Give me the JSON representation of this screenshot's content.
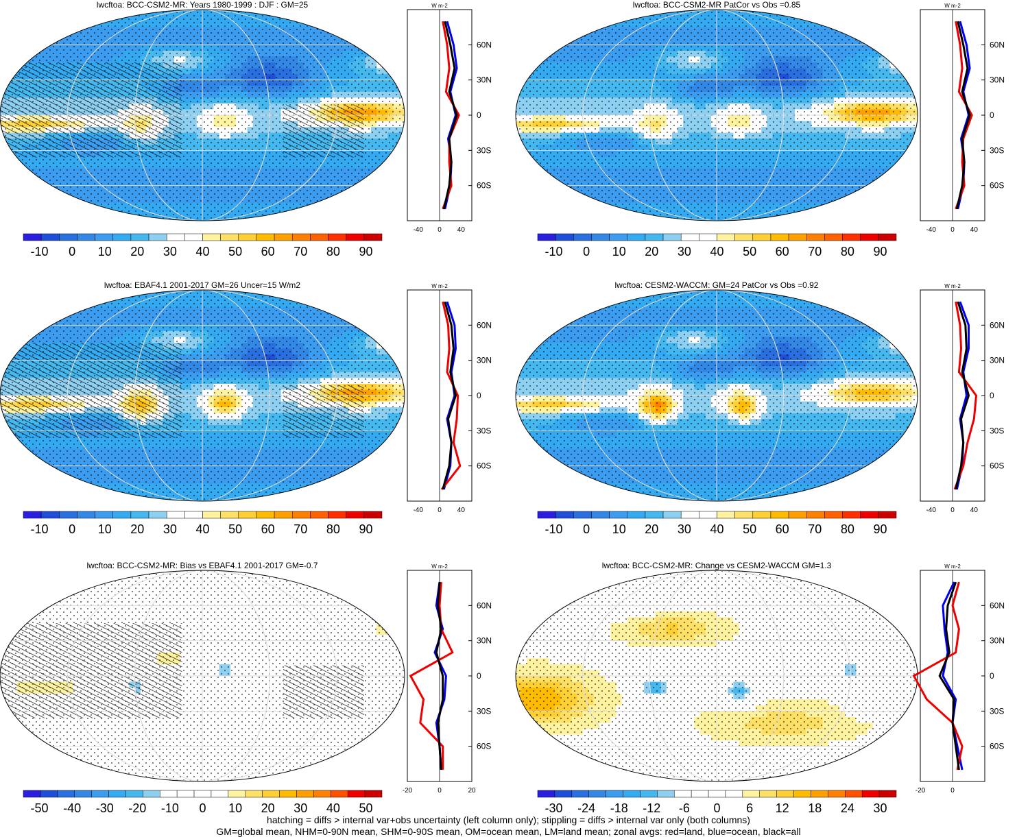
{
  "colors": {
    "red_label": "land",
    "blue_label": "ocean",
    "black_label": "all"
  },
  "panels": [
    {
      "title": "lwcftoa: BCC-CSM2-MR: Years 1980-1999 : DJF : GM=25",
      "field": "model",
      "hatched": true,
      "colorbar": {
        "palette": "abs",
        "labels": [
          "-10",
          "0",
          "10",
          "20",
          "30",
          "40",
          "50",
          "60",
          "70",
          "80",
          "90"
        ]
      },
      "zonal": {
        "xticks": [
          "-40",
          "0",
          "40"
        ],
        "unit_label": "W m-2"
      }
    },
    {
      "title": "lwcftoa: BCC-CSM2-MR PatCor vs Obs =0.85",
      "field": "model",
      "hatched": false,
      "colorbar": {
        "palette": "abs",
        "labels": [
          "-10",
          "0",
          "10",
          "20",
          "30",
          "40",
          "50",
          "60",
          "70",
          "80",
          "90"
        ]
      },
      "zonal": {
        "xticks": [
          "-40",
          "0",
          "40"
        ],
        "unit_label": "W m-2"
      }
    },
    {
      "title": "lwcftoa: EBAF4.1 2001-2017 GM=26 Uncer=15 W/m2",
      "field": "obs",
      "hatched": true,
      "colorbar": {
        "palette": "abs",
        "labels": [
          "-10",
          "0",
          "10",
          "20",
          "30",
          "40",
          "50",
          "60",
          "70",
          "80",
          "90"
        ]
      },
      "zonal": {
        "xticks": [
          "-40",
          "0",
          "40"
        ],
        "unit_label": "W m-2"
      }
    },
    {
      "title": "lwcftoa: CESM2-WACCM: GM=24 PatCor vs Obs =0.92",
      "field": "waccm",
      "hatched": false,
      "colorbar": {
        "palette": "abs",
        "labels": [
          "-10",
          "0",
          "10",
          "20",
          "30",
          "40",
          "50",
          "60",
          "70",
          "80",
          "90"
        ]
      },
      "zonal": {
        "xticks": [
          "-40",
          "0",
          "40"
        ],
        "unit_label": "W m-2"
      }
    },
    {
      "title": "lwcftoa: BCC-CSM2-MR: Bias vs EBAF4.1 2001-2017 GM=-0.7",
      "field": "bias",
      "hatched": true,
      "colorbar": {
        "palette": "diff",
        "labels": [
          "-50",
          "-40",
          "-30",
          "-20",
          "-10",
          "0",
          "10",
          "20",
          "30",
          "40",
          "50"
        ]
      },
      "zonal": {
        "xticks": [
          "-20",
          "0",
          "20"
        ],
        "unit_label": "W m-2"
      }
    },
    {
      "title": "lwcftoa: BCC-CSM2-MR: Change vs CESM2-WACCM GM=1.3",
      "field": "change",
      "hatched": false,
      "colorbar": {
        "palette": "diff",
        "labels": [
          "-30",
          "-24",
          "-18",
          "-12",
          "-6",
          "0",
          "6",
          "12",
          "18",
          "24",
          "30"
        ]
      },
      "zonal": {
        "xticks": [
          "-20",
          "0"
        ],
        "unit_label": "W m-2"
      }
    }
  ],
  "lat_ticks": [
    "60N",
    "30N",
    "0",
    "30S",
    "60S"
  ],
  "footer": {
    "line1": "hatching = diffs > internal var+obs uncertainty (left column only); stippling = diffs > internal var only (both columns)",
    "line2": "GM=global mean, NHM=0-90N mean, SHM=0-90S mean, OM=ocean mean, LM=land mean; zonal avgs: red=land, blue=ocean, black=all"
  },
  "chart_data": [
    {
      "type": "heatmap",
      "title": "lwcftoa: BCC-CSM2-MR: Years 1980-1999 : DJF : GM=25",
      "projection": "robinson",
      "colorbar_range": [
        -15,
        95
      ],
      "zonal_mean": {
        "lat": [
          80,
          60,
          40,
          20,
          0,
          -20,
          -40,
          -60,
          -80
        ],
        "all": [
          10,
          20,
          28,
          18,
          32,
          18,
          22,
          18,
          8
        ],
        "ocean": [
          14,
          26,
          32,
          20,
          30,
          16,
          22,
          20,
          10
        ],
        "land": [
          6,
          14,
          18,
          12,
          36,
          18,
          18,
          22,
          6
        ]
      }
    },
    {
      "type": "heatmap",
      "title": "lwcftoa: BCC-CSM2-MR PatCor vs Obs =0.85",
      "projection": "robinson",
      "colorbar_range": [
        -15,
        95
      ],
      "zonal_mean": {
        "lat": [
          80,
          60,
          40,
          20,
          0,
          -20,
          -40,
          -60,
          -80
        ],
        "all": [
          10,
          20,
          28,
          18,
          32,
          18,
          22,
          18,
          8
        ],
        "ocean": [
          14,
          26,
          32,
          20,
          30,
          16,
          22,
          20,
          10
        ],
        "land": [
          6,
          14,
          18,
          12,
          36,
          20,
          18,
          22,
          6
        ]
      }
    },
    {
      "type": "heatmap",
      "title": "lwcftoa: EBAF4.1 2001-2017 GM=26 Uncer=15 W/m2",
      "projection": "robinson",
      "colorbar_range": [
        -15,
        95
      ],
      "zonal_mean": {
        "lat": [
          80,
          60,
          40,
          20,
          0,
          -20,
          -40,
          -60,
          -80
        ],
        "all": [
          10,
          22,
          26,
          20,
          30,
          16,
          22,
          18,
          6
        ],
        "ocean": [
          14,
          28,
          30,
          22,
          28,
          14,
          22,
          20,
          8
        ],
        "land": [
          6,
          16,
          18,
          14,
          34,
          32,
          26,
          38,
          4
        ]
      }
    },
    {
      "type": "heatmap",
      "title": "lwcftoa: CESM2-WACCM: GM=24 PatCor vs Obs =0.92",
      "projection": "robinson",
      "colorbar_range": [
        -15,
        95
      ],
      "zonal_mean": {
        "lat": [
          80,
          60,
          40,
          20,
          0,
          -20,
          -40,
          -60,
          -80
        ],
        "all": [
          10,
          24,
          26,
          18,
          30,
          16,
          20,
          16,
          6
        ],
        "ocean": [
          14,
          30,
          30,
          20,
          26,
          14,
          20,
          18,
          8
        ],
        "land": [
          6,
          14,
          16,
          12,
          44,
          40,
          28,
          20,
          4
        ]
      }
    },
    {
      "type": "heatmap",
      "title": "lwcftoa: BCC-CSM2-MR: Bias vs EBAF4.1 2001-2017 GM=-0.7",
      "projection": "robinson",
      "colorbar_range": [
        -55,
        55
      ],
      "zonal_mean": {
        "lat": [
          80,
          60,
          40,
          20,
          0,
          -20,
          -40,
          -60,
          -80
        ],
        "all": [
          0,
          -1,
          1,
          -2,
          2,
          2,
          -1,
          0,
          1
        ],
        "ocean": [
          0,
          -2,
          2,
          -3,
          4,
          3,
          -2,
          0,
          1
        ],
        "land": [
          1,
          0,
          1,
          8,
          -18,
          -10,
          -12,
          2,
          2
        ]
      }
    },
    {
      "type": "heatmap",
      "title": "lwcftoa: BCC-CSM2-MR: Change vs CESM2-WACCM GM=1.3",
      "projection": "robinson",
      "colorbar_range": [
        -33,
        33
      ],
      "zonal_mean": {
        "lat": [
          80,
          60,
          40,
          20,
          0,
          -20,
          -40,
          -60,
          -80
        ],
        "all": [
          2,
          -3,
          -4,
          -2,
          -8,
          1,
          0,
          2,
          4
        ],
        "ocean": [
          1,
          -6,
          -5,
          -3,
          -6,
          2,
          0,
          3,
          6
        ],
        "land": [
          4,
          0,
          4,
          2,
          -24,
          -16,
          0,
          6,
          3
        ]
      }
    }
  ]
}
